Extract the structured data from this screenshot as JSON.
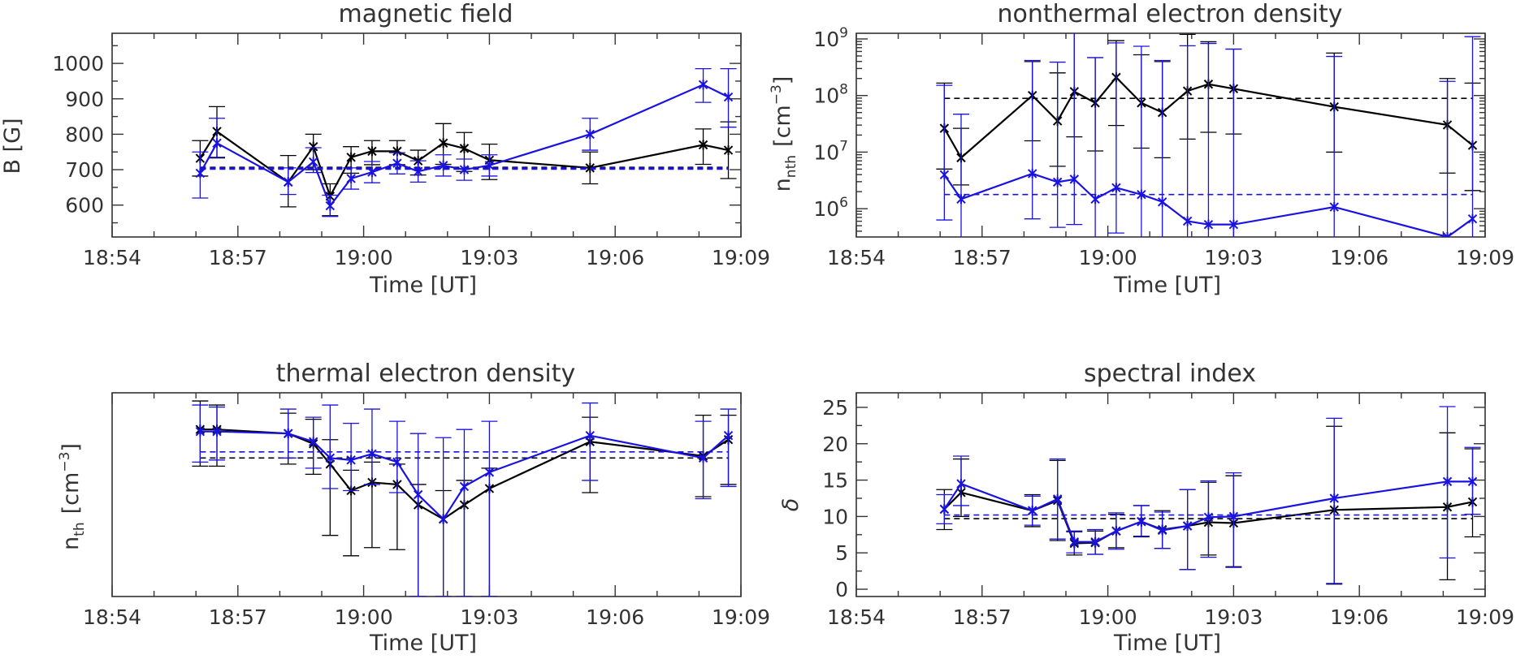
{
  "colors": {
    "black": "#000000",
    "blue": "#1a12e0",
    "axis": "#333333"
  },
  "x_axis": {
    "ticks": [
      0,
      3,
      6,
      9,
      12,
      15
    ],
    "tick_labels": [
      "18:54",
      "18:57",
      "19:00",
      "19:03",
      "19:06",
      "19:09"
    ],
    "label": "Time [UT]",
    "range": [
      0,
      15
    ]
  },
  "chart_data": [
    {
      "type": "line",
      "title": "magnetic field",
      "ylabel": "B [G]",
      "xlabel": "Time [UT]",
      "yscale": "linear",
      "ylim": [
        510,
        1085
      ],
      "yticks": [
        600,
        700,
        800,
        900,
        1000
      ],
      "ytick_labels": [
        "600",
        "700",
        "800",
        "900",
        "1000"
      ],
      "x": [
        2.1,
        2.5,
        4.2,
        4.8,
        5.2,
        5.7,
        6.2,
        6.8,
        7.3,
        7.9,
        8.4,
        9.0,
        11.4,
        14.1,
        14.7
      ],
      "series": [
        {
          "name": "black",
          "color": "#000000",
          "values": [
            732,
            808,
            665,
            765,
            625,
            735,
            752,
            752,
            725,
            775,
            760,
            727,
            705,
            770,
            755
          ],
          "err_low": [
            50,
            75,
            70,
            65,
            55,
            45,
            38,
            38,
            40,
            60,
            65,
            55,
            45,
            55,
            80
          ],
          "err_high": [
            50,
            70,
            75,
            35,
            35,
            30,
            30,
            30,
            30,
            55,
            45,
            45,
            45,
            45,
            80
          ],
          "reference": 705
        },
        {
          "name": "blue",
          "color": "#1a12e0",
          "values": [
            690,
            775,
            665,
            722,
            598,
            675,
            693,
            718,
            695,
            712,
            700,
            712,
            800,
            940,
            905
          ],
          "err_low": [
            70,
            40,
            35,
            30,
            30,
            30,
            30,
            30,
            30,
            30,
            30,
            30,
            45,
            50,
            85
          ],
          "err_high": [
            60,
            70,
            40,
            40,
            30,
            30,
            30,
            30,
            30,
            30,
            30,
            30,
            45,
            45,
            80
          ],
          "reference": 703
        }
      ]
    },
    {
      "type": "line",
      "title": "nonthermal electron density",
      "ylabel": "n_nth [cm^-3]",
      "ylabel_main": "n",
      "ylabel_sub": "nth",
      "ylabel_unit": "[cm",
      "ylabel_exp": "−3",
      "ylabel_close": "]",
      "xlabel": "Time [UT]",
      "yscale": "log",
      "ylim_log10": [
        5.5,
        9.1
      ],
      "yticks_log10": [
        6,
        7,
        8,
        9
      ],
      "ytick_base": "10",
      "ytick_exps": [
        "6",
        "7",
        "8",
        "9"
      ],
      "x": [
        2.1,
        2.5,
        4.2,
        4.8,
        5.2,
        5.7,
        6.2,
        6.8,
        7.3,
        7.9,
        8.4,
        9.0,
        11.4,
        14.1,
        14.7
      ],
      "series": [
        {
          "name": "black",
          "color": "#000000",
          "values_log10": [
            7.42,
            6.9,
            8.0,
            7.55,
            8.07,
            7.87,
            8.32,
            7.87,
            7.7,
            8.08,
            8.2,
            8.12,
            7.8,
            7.48,
            7.12
          ],
          "err_low_log10": [
            0.72,
            0.48,
            0.8,
            0.8,
            0.8,
            0.85,
            0.85,
            0.8,
            0.8,
            0.85,
            0.85,
            0.8,
            0.8,
            0.85,
            0.8
          ],
          "err_high_log10": [
            0.8,
            0.52,
            0.6,
            0.85,
            1.1,
            0.8,
            0.65,
            0.85,
            0.9,
            1.0,
            0.75,
            0.7,
            0.95,
            0.82,
            1.1
          ],
          "reference_log10": 7.95
        },
        {
          "name": "blue",
          "color": "#1a12e0",
          "values_log10": [
            6.6,
            6.17,
            6.62,
            6.47,
            6.52,
            6.17,
            6.37,
            6.25,
            6.12,
            5.78,
            5.72,
            5.72,
            6.03,
            5.5,
            5.82
          ],
          "err_low_log10": [
            0.8,
            0.75,
            0.8,
            0.8,
            0.8,
            0.8,
            0.8,
            0.8,
            0.8,
            0.8,
            0.8,
            0.8,
            0.8,
            0.8,
            0.8
          ],
          "err_high_log10": [
            1.58,
            1.5,
            2.0,
            2.12,
            2.6,
            2.5,
            2.56,
            2.62,
            2.5,
            3.1,
            3.2,
            3.1,
            2.66,
            2.75,
            3.22
          ],
          "reference_log10": 6.25
        }
      ]
    },
    {
      "type": "line",
      "title": "thermal electron density",
      "ylabel": "n_th [cm^-3]",
      "ylabel_main": "n",
      "ylabel_sub": "th",
      "ylabel_unit": "[cm",
      "ylabel_exp": "−3",
      "ylabel_close": "]",
      "xlabel": "Time [UT]",
      "yscale": "linear",
      "ylim": [
        0,
        100
      ],
      "yticks": [],
      "x": [
        2.1,
        2.5,
        4.2,
        4.8,
        5.2,
        5.7,
        6.2,
        6.8,
        7.3,
        7.9,
        8.4,
        9.0,
        11.4,
        14.1,
        14.7
      ],
      "series": [
        {
          "name": "black",
          "color": "#000000",
          "values": [
            82,
            82,
            80,
            75,
            65,
            52,
            56,
            55,
            45,
            38,
            45,
            53,
            76,
            69,
            77
          ],
          "err_low": [
            18,
            18,
            15,
            15,
            35,
            32,
            32,
            32,
            45,
            38,
            45,
            53,
            25,
            20,
            22
          ],
          "err_high": [
            14,
            12,
            10,
            12,
            12,
            10,
            10,
            10,
            10,
            14,
            12,
            10,
            12,
            20,
            12
          ],
          "reference": 68
        },
        {
          "name": "blue",
          "color": "#1a12e0",
          "values": [
            81,
            81,
            80,
            76,
            68,
            67,
            70,
            66,
            50,
            38,
            54,
            61,
            79,
            68,
            79
          ],
          "err_low": [
            15,
            14,
            12,
            13,
            15,
            15,
            15,
            15,
            50,
            38,
            54,
            61,
            22,
            20,
            25
          ],
          "err_high": [
            13,
            12,
            12,
            12,
            26,
            18,
            22,
            20,
            30,
            40,
            28,
            25,
            16,
            18,
            13
          ],
          "reference": 71
        }
      ]
    },
    {
      "type": "line",
      "title": "spectral index",
      "ylabel": "δ",
      "xlabel": "Time [UT]",
      "yscale": "linear",
      "ylim": [
        -1,
        27
      ],
      "yticks": [
        0,
        5,
        10,
        15,
        20,
        25
      ],
      "ytick_labels": [
        "0",
        "5",
        "10",
        "15",
        "20",
        "25"
      ],
      "x": [
        2.1,
        2.5,
        4.2,
        4.8,
        5.2,
        5.7,
        6.2,
        6.8,
        7.3,
        7.9,
        8.4,
        9.0,
        11.4,
        14.1,
        14.7
      ],
      "series": [
        {
          "name": "black",
          "color": "#000000",
          "values": [
            11,
            13.3,
            10.8,
            12.2,
            6.3,
            6.4,
            8,
            9.3,
            8.2,
            8.7,
            9.2,
            9.1,
            10.9,
            11.3,
            12
          ],
          "err_low": [
            2.8,
            3.3,
            2.2,
            5.5,
            1.6,
            1.6,
            2.3,
            2.1,
            2.6,
            6,
            4.5,
            6,
            10.2,
            10,
            4.8
          ],
          "err_high": [
            2.7,
            4.6,
            2.2,
            5.5,
            1.6,
            1.6,
            2.3,
            2.2,
            2.6,
            5,
            5.5,
            6.5,
            11.5,
            10.2,
            7.3
          ],
          "reference": 9.7
        },
        {
          "name": "blue",
          "color": "#1a12e0",
          "values": [
            11,
            14.5,
            10.8,
            12.4,
            6.5,
            6.5,
            8,
            9.3,
            8.1,
            8.7,
            9.9,
            10,
            12.5,
            14.8,
            14.8
          ],
          "err_low": [
            2,
            3,
            2,
            5.5,
            1.5,
            1.7,
            2.5,
            2,
            2.5,
            6,
            5.5,
            7,
            11.7,
            10.5,
            4.5
          ],
          "err_high": [
            2,
            3.8,
            2,
            5.5,
            1.5,
            1.7,
            2.5,
            2.2,
            2.5,
            5,
            5,
            6,
            11,
            10.3,
            4.7
          ],
          "reference": 10.2
        }
      ]
    }
  ]
}
